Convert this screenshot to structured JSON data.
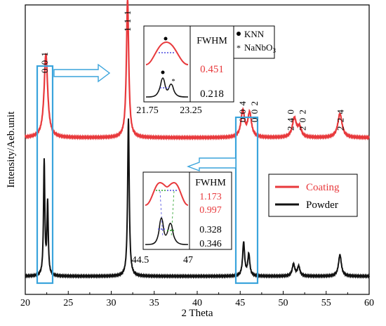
{
  "colors": {
    "coating": "#e8393c",
    "powder": "#111111",
    "box": "#3aa4dc",
    "arrow": "#3aa4dc",
    "dotted_blue": "#4a4adf",
    "dotted_green": "#28a028"
  },
  "chart_data": {
    "type": "line",
    "title": "",
    "xlabel": "2 Theta",
    "ylabel": "Intensity/Aeb.unit",
    "xlim": [
      20,
      60
    ],
    "xticks": [
      "20",
      "25",
      "30",
      "35",
      "40",
      "45",
      "50",
      "55",
      "60"
    ],
    "xtick_values": [
      20,
      25,
      30,
      35,
      40,
      45,
      50,
      55,
      60
    ],
    "grid": false,
    "legend_position": "right",
    "series": [
      {
        "name": "Coating",
        "color": "#e8393c",
        "baseline": 0.6,
        "peaks": [
          {
            "x": 22.4,
            "h": 0.35,
            "w": 0.5
          },
          {
            "x": 31.9,
            "h": 0.58,
            "w": 0.32
          },
          {
            "x": 45.3,
            "h": 0.11,
            "w": 0.5
          },
          {
            "x": 46.1,
            "h": 0.1,
            "w": 0.5
          },
          {
            "x": 51.3,
            "h": 0.08,
            "w": 0.55
          },
          {
            "x": 51.9,
            "h": 0.04,
            "w": 0.5
          },
          {
            "x": 56.6,
            "h": 0.1,
            "w": 0.6
          }
        ]
      },
      {
        "name": "Powder",
        "color": "#111111",
        "baseline": 0.02,
        "peaks": [
          {
            "x": 22.2,
            "h": 0.48,
            "w": 0.18
          },
          {
            "x": 22.6,
            "h": 0.3,
            "w": 0.18
          },
          {
            "x": 32.0,
            "h": 0.66,
            "w": 0.22
          },
          {
            "x": 45.4,
            "h": 0.14,
            "w": 0.28
          },
          {
            "x": 46.0,
            "h": 0.09,
            "w": 0.28
          },
          {
            "x": 51.2,
            "h": 0.05,
            "w": 0.35
          },
          {
            "x": 51.8,
            "h": 0.04,
            "w": 0.35
          },
          {
            "x": 56.6,
            "h": 0.09,
            "w": 0.4
          }
        ]
      }
    ],
    "peak_labels": [
      {
        "text": "0 0 1",
        "x": 22.3
      },
      {
        "text": "1 1 1",
        "x": 31.9
      },
      {
        "text": "0 0 4",
        "x": 45.3
      },
      {
        "text": "0 0 2",
        "x": 46.7
      },
      {
        "text": "2 4 0",
        "x": 50.9
      },
      {
        "text": "2 0 2",
        "x": 52.3
      },
      {
        "text": "2 2 4",
        "x": 56.7
      }
    ],
    "legend": {
      "entries": [
        "Coating",
        "Powder"
      ]
    },
    "inset_top": {
      "heading": "FWHM",
      "coating_value": "0.451",
      "powder_value": "0.218",
      "range_start": "21.75",
      "range_end": "23.25",
      "key_knn": "KNN",
      "key_nanbo": "NaNbO",
      "key_nanbo_sub": "3"
    },
    "inset_bottom": {
      "heading": "FWHM",
      "coating_values": [
        "1.173",
        "0.997"
      ],
      "powder_values": [
        "0.328",
        "0.346"
      ],
      "range_start": "44.5",
      "range_end": "47"
    }
  }
}
